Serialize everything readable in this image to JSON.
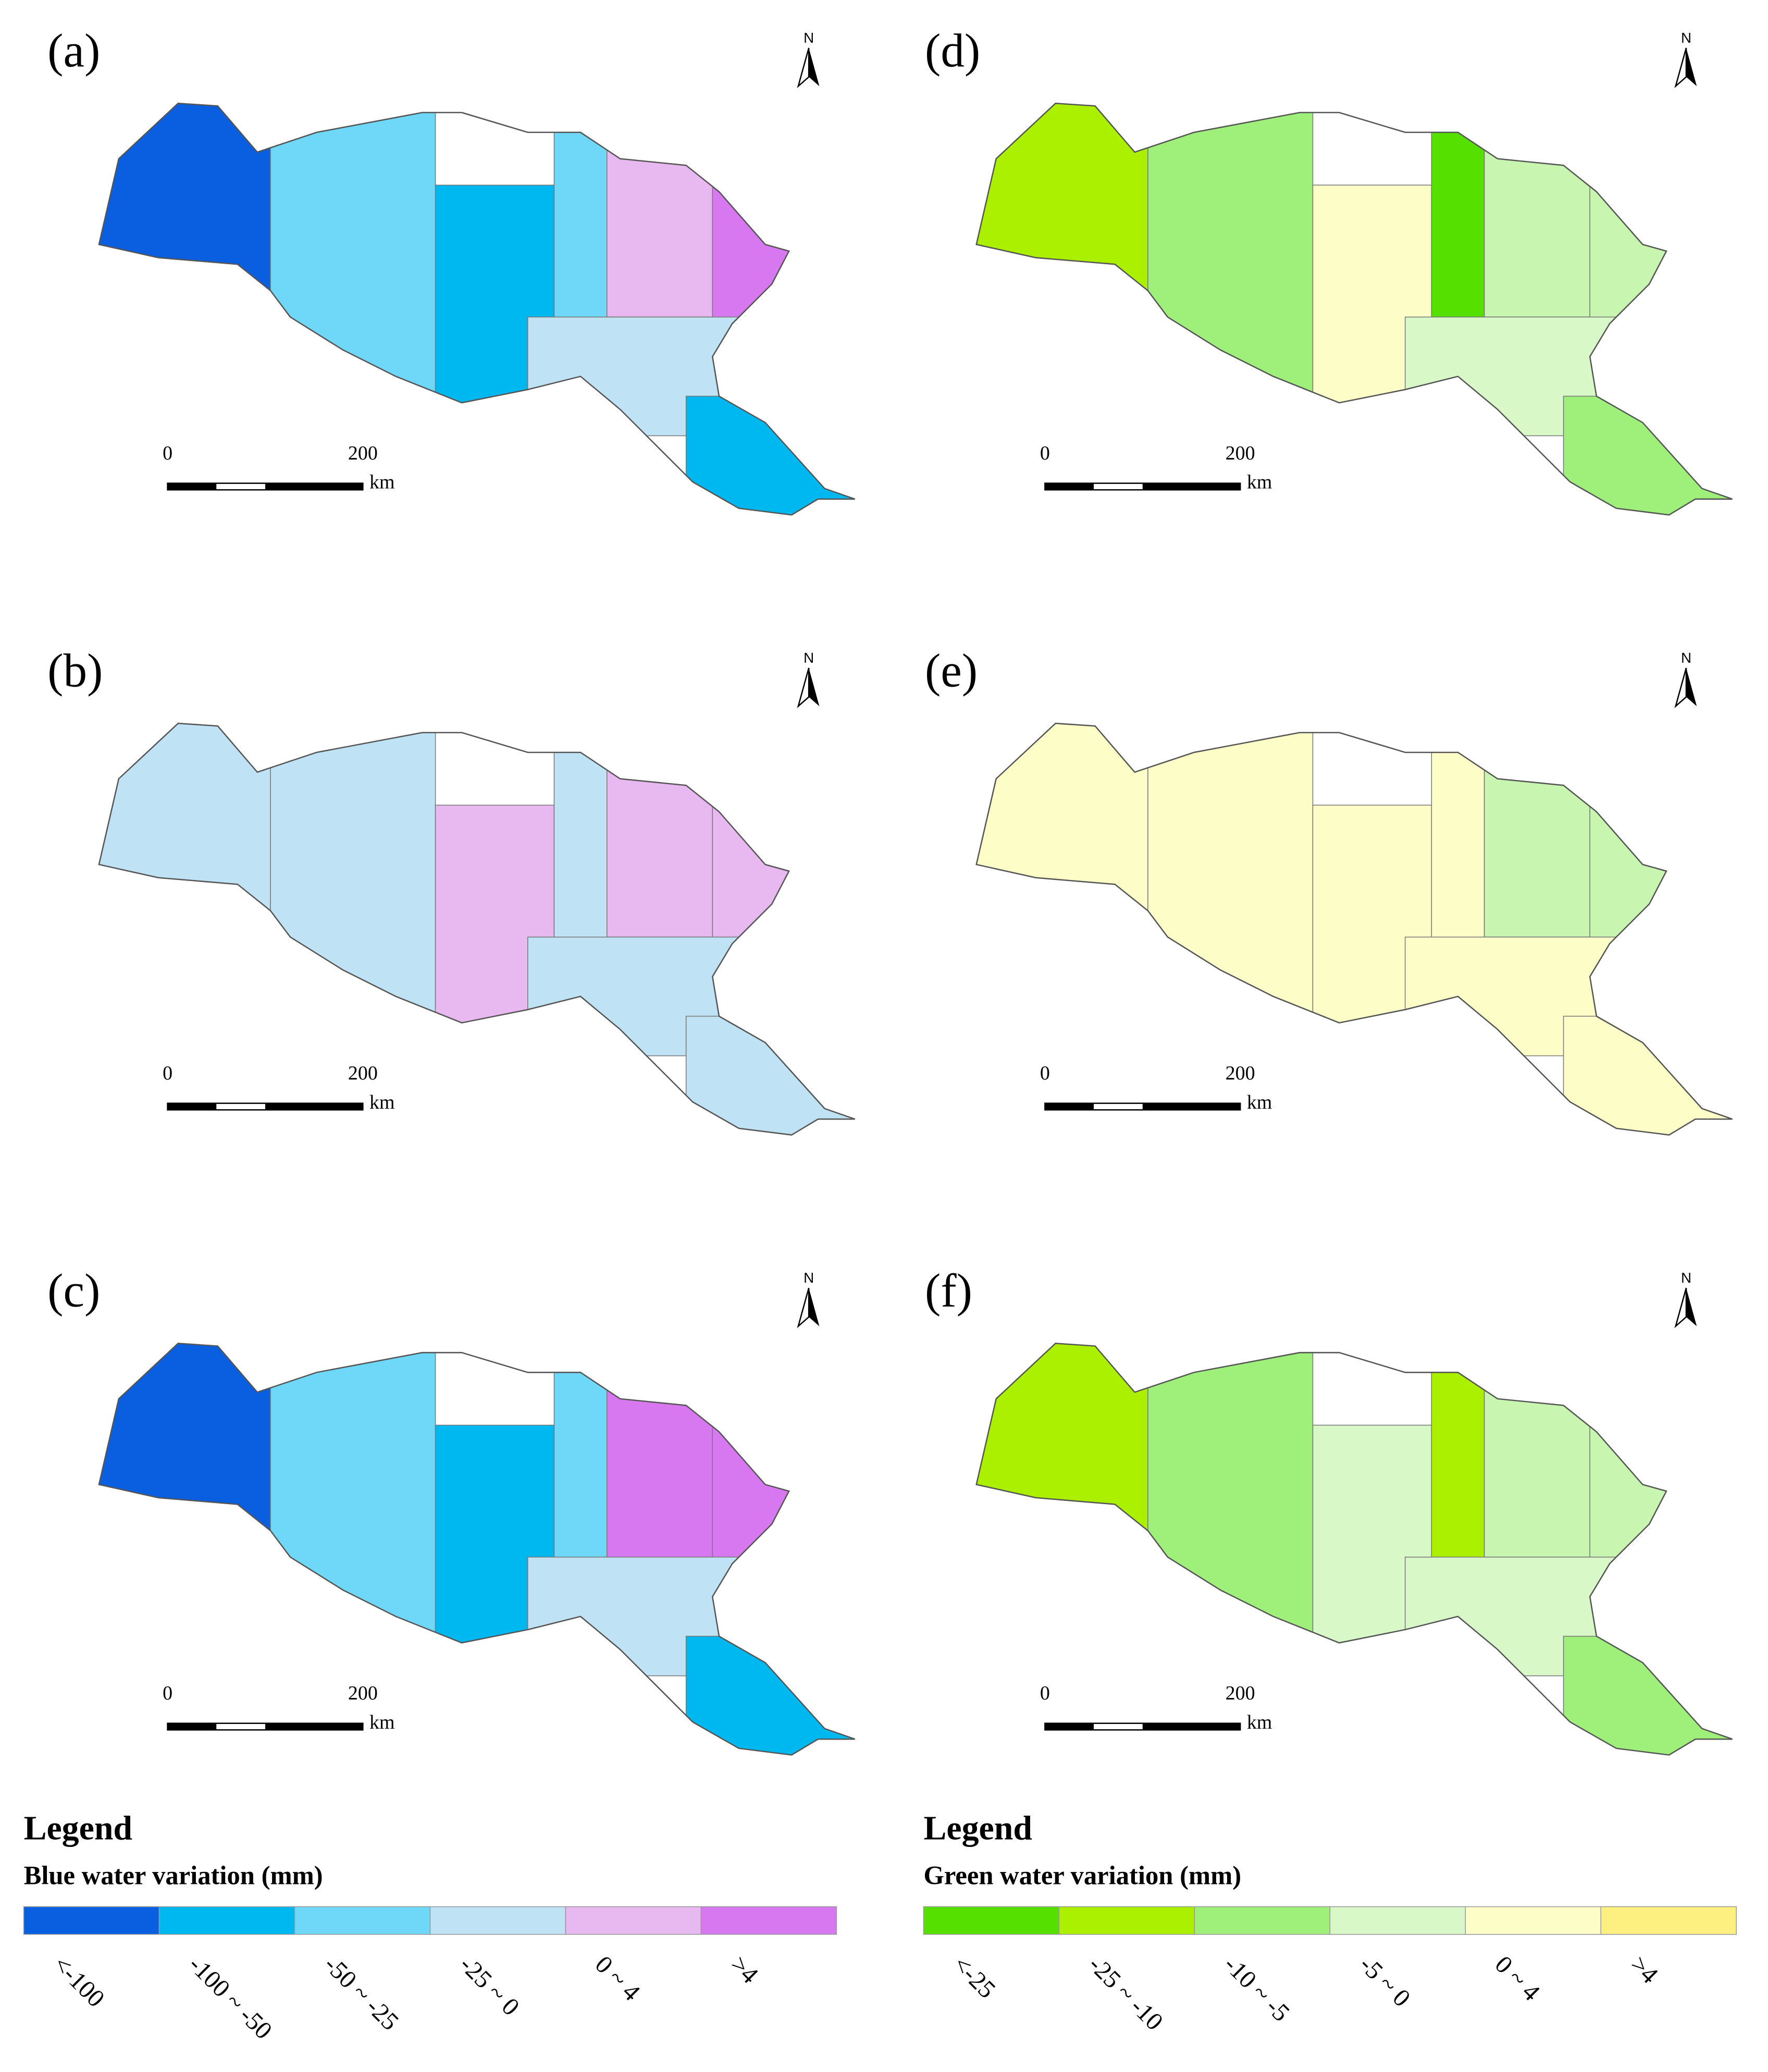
{
  "north": "N",
  "scale": {
    "ticks": [
      "0",
      "200"
    ],
    "unit": "km"
  },
  "panels": [
    {
      "label": "(a)",
      "region_colors": [
        "#0a5ee0",
        "#6fd8f8",
        "#00b8f0",
        "#6fd8f8",
        "#e8b8f0",
        "#d878f0",
        "#bfe3f5",
        "#00b8f0"
      ]
    },
    {
      "label": "(b)",
      "region_colors": [
        "#bfe3f5",
        "#bfe3f5",
        "#e8b8f0",
        "#bfe3f5",
        "#e8b8f0",
        "#e8b8f0",
        "#bfe3f5",
        "#bfe3f5"
      ]
    },
    {
      "label": "(c)",
      "region_colors": [
        "#0a5ee0",
        "#6fd8f8",
        "#00b8f0",
        "#6fd8f8",
        "#d878f0",
        "#d878f0",
        "#bfe3f5",
        "#00b8f0"
      ]
    },
    {
      "label": "(d)",
      "region_colors": [
        "#aaf000",
        "#9ef07a",
        "#fdfdc8",
        "#55e000",
        "#c8f5b0",
        "#c8f5b0",
        "#d8f8c8",
        "#9ef07a"
      ]
    },
    {
      "label": "(e)",
      "region_colors": [
        "#fdfdc8",
        "#fdfdc8",
        "#fdfdc8",
        "#fdfdc8",
        "#c8f5b0",
        "#c8f5b0",
        "#fdfdc8",
        "#fdfdc8"
      ]
    },
    {
      "label": "(f)",
      "region_colors": [
        "#aaf000",
        "#9ef07a",
        "#d8f8c8",
        "#aaf000",
        "#c8f5b0",
        "#c8f5b0",
        "#d8f8c8",
        "#9ef07a"
      ]
    }
  ],
  "legends": [
    {
      "heading": "Legend",
      "title": "Blue water variation (mm)",
      "classes": [
        "<-100",
        "-100 ~ -50",
        "-50 ~ -25",
        "-25 ~ 0",
        "0 ~ 4",
        ">4"
      ],
      "colors": [
        "#0a5ee0",
        "#00b8f0",
        "#6fd8f8",
        "#bfe3f5",
        "#e8b8f0",
        "#d878f0"
      ]
    },
    {
      "heading": "Legend",
      "title": "Green water variation (mm)",
      "classes": [
        "<-25",
        "-25 ~ -10",
        "-10 ~ -5",
        "-5 ~ 0",
        "0 ~ 4",
        ">4"
      ],
      "colors": [
        "#55e000",
        "#aaf000",
        "#9ef07a",
        "#d8f8c8",
        "#fdfdc8",
        "#fdf080"
      ]
    }
  ]
}
